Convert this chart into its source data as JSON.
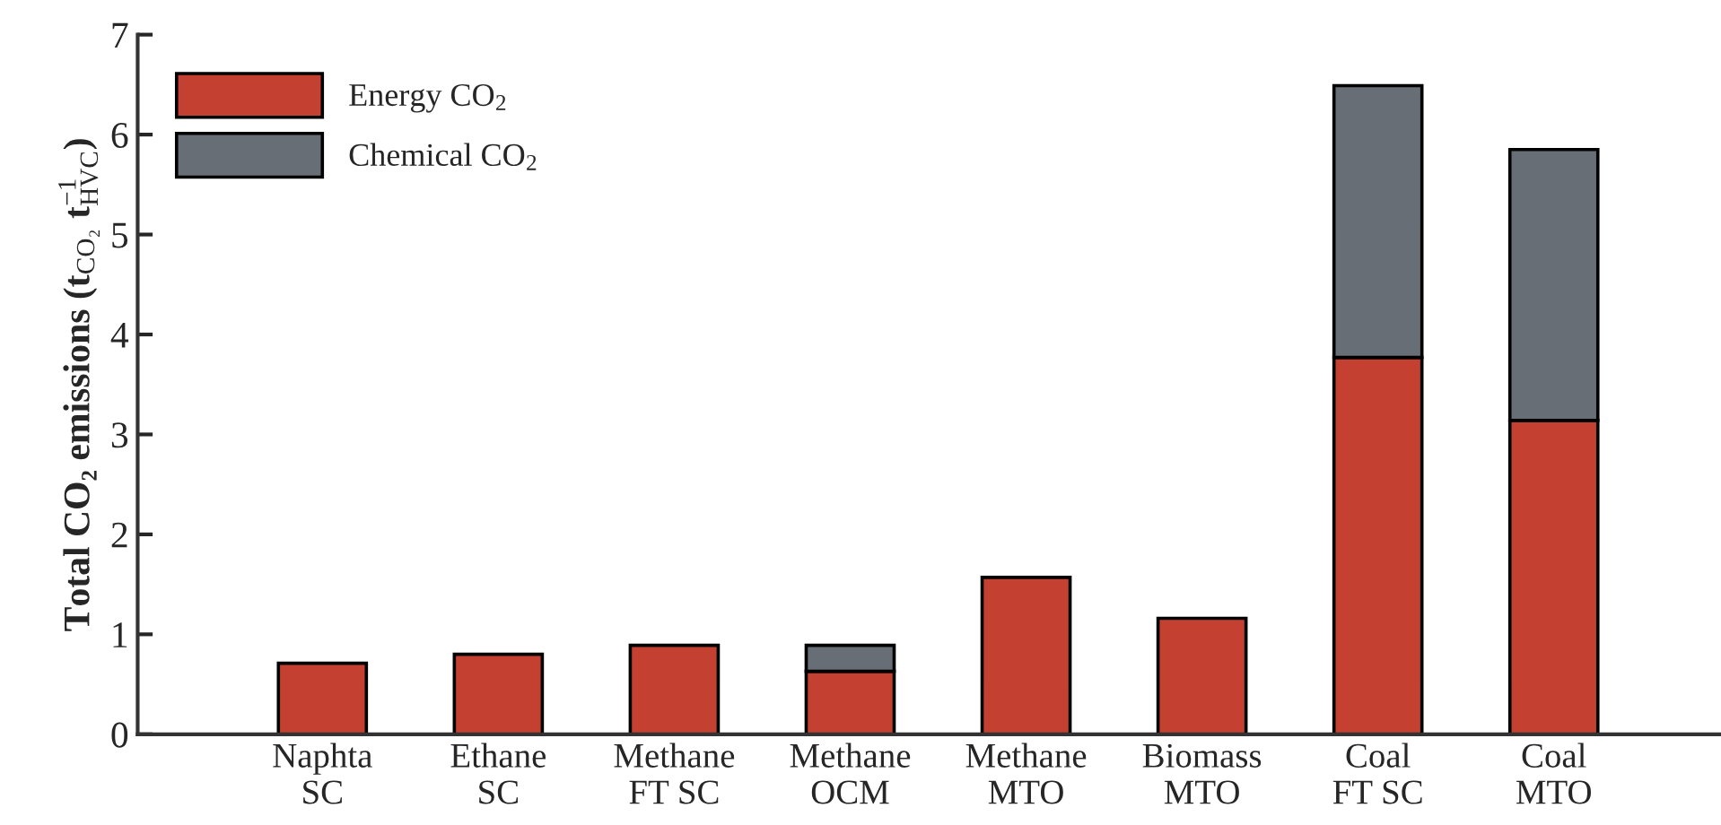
{
  "chart_data": {
    "type": "bar",
    "stacked": true,
    "ylabel": "Total CO₂ emissions (t$_{CO₂}$ t$^{−1}$$_{HVC}$)",
    "categories": [
      "Naphta\nSC",
      "Ethane\nSC",
      "Methane\nFT SC",
      "Methane\nOCM",
      "Methane\nMTO",
      "Biomass\nMTO",
      "Coal\nFT SC",
      "Coal\nMTO"
    ],
    "series": [
      {
        "name": "Energy CO$_{2}$",
        "color": "#c44030",
        "values": [
          0.71,
          0.8,
          0.89,
          0.63,
          1.57,
          1.16,
          3.77,
          3.14
        ]
      },
      {
        "name": "Chemical CO$_{2}$",
        "color": "#676e75",
        "values": [
          null,
          null,
          null,
          0.26,
          null,
          null,
          2.72,
          2.71
        ]
      }
    ],
    "ylim": [
      0,
      7
    ],
    "yticks": [
      0,
      1,
      2,
      3,
      4,
      5,
      6,
      7
    ],
    "grid": false,
    "legend": "top left"
  }
}
